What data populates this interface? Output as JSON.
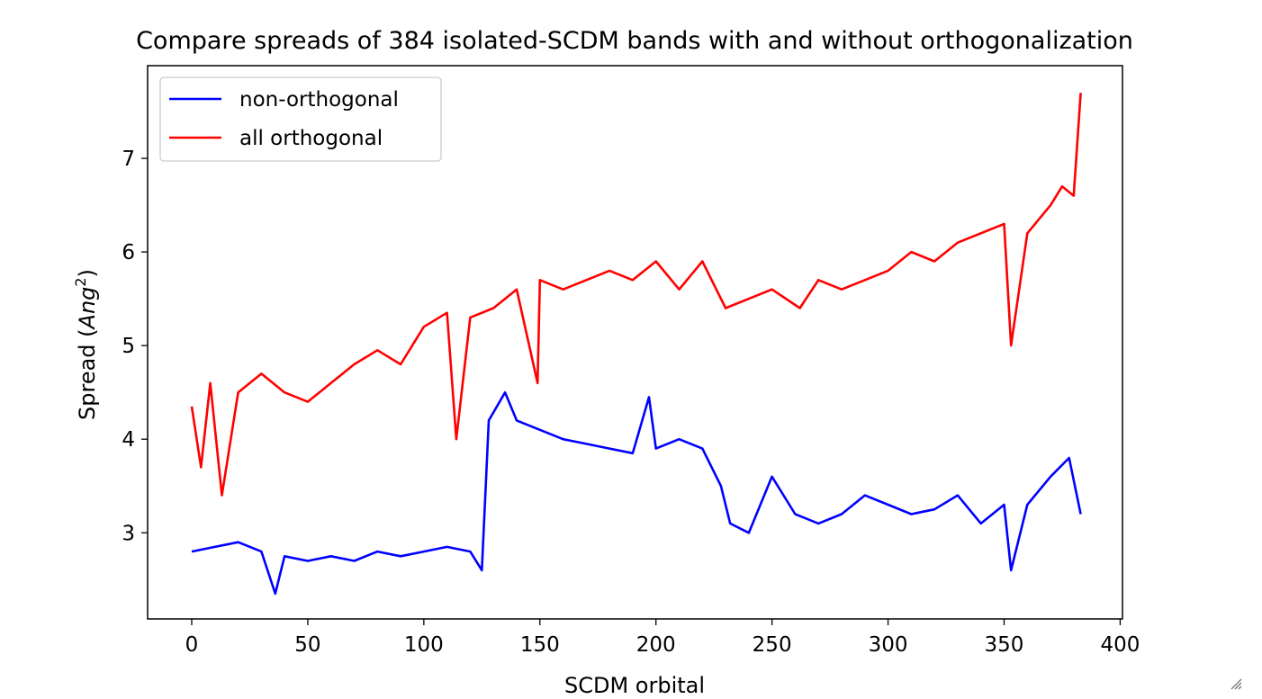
{
  "chart_data": {
    "type": "line",
    "title": "Compare spreads of 384 isolated-SCDM bands with and without orthogonalization",
    "xlabel": "SCDM orbital",
    "ylabel_prefix": "Spread (",
    "ylabel_var": "Ang",
    "ylabel_sup": "2",
    "ylabel_suffix": ")",
    "xlim": [
      -19,
      401
    ],
    "ylim": [
      2.08,
      7.99
    ],
    "xticks": [
      0,
      50,
      100,
      150,
      200,
      250,
      300,
      350,
      400
    ],
    "yticks": [
      3,
      4,
      5,
      6,
      7
    ],
    "grid": false,
    "legend_position": "top-left",
    "series": [
      {
        "name": "non-orthogonal",
        "color": "#0000ff",
        "x": [
          0,
          10,
          20,
          30,
          36,
          40,
          50,
          60,
          70,
          80,
          90,
          100,
          110,
          120,
          125,
          128,
          135,
          140,
          150,
          160,
          170,
          180,
          190,
          197,
          200,
          210,
          220,
          228,
          232,
          240,
          250,
          260,
          270,
          280,
          290,
          300,
          310,
          320,
          330,
          340,
          350,
          353,
          360,
          370,
          378,
          383
        ],
        "values": [
          2.8,
          2.85,
          2.9,
          2.8,
          2.35,
          2.75,
          2.7,
          2.75,
          2.7,
          2.8,
          2.75,
          2.8,
          2.85,
          2.8,
          2.6,
          4.2,
          4.5,
          4.2,
          4.1,
          4.0,
          3.95,
          3.9,
          3.85,
          4.45,
          3.9,
          4.0,
          3.9,
          3.5,
          3.1,
          3.0,
          3.6,
          3.2,
          3.1,
          3.2,
          3.4,
          3.3,
          3.2,
          3.25,
          3.4,
          3.1,
          3.3,
          2.6,
          3.3,
          3.6,
          3.8,
          3.2
        ]
      },
      {
        "name": "all orthogonal",
        "color": "#ff0000",
        "x": [
          0,
          4,
          8,
          13,
          20,
          30,
          40,
          50,
          60,
          70,
          80,
          90,
          100,
          110,
          114,
          120,
          130,
          140,
          149,
          150,
          160,
          170,
          180,
          190,
          200,
          210,
          220,
          230,
          240,
          250,
          262,
          270,
          280,
          290,
          300,
          310,
          320,
          330,
          340,
          350,
          353,
          360,
          370,
          375,
          380,
          383
        ],
        "values": [
          4.35,
          3.7,
          4.6,
          3.4,
          4.5,
          4.7,
          4.5,
          4.4,
          4.6,
          4.8,
          4.95,
          4.8,
          5.2,
          5.35,
          4.0,
          5.3,
          5.4,
          5.6,
          4.6,
          5.7,
          5.6,
          5.7,
          5.8,
          5.7,
          5.9,
          5.6,
          5.9,
          5.4,
          5.5,
          5.6,
          5.4,
          5.7,
          5.6,
          5.7,
          5.8,
          6.0,
          5.9,
          6.1,
          6.2,
          6.3,
          5.0,
          6.2,
          6.5,
          6.7,
          6.6,
          7.7
        ]
      }
    ]
  }
}
